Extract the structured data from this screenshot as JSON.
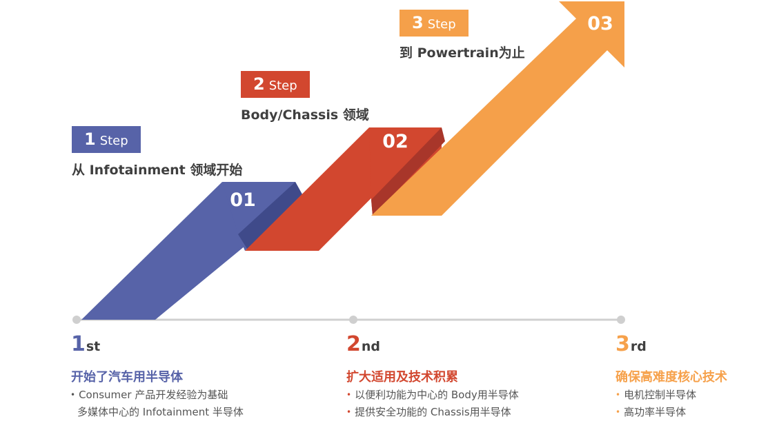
{
  "colors": {
    "step1": "#5763a8",
    "step1_dark": "#3f4a8a",
    "step2": "#d2472f",
    "step2_dark": "#a8362a",
    "step3": "#f5a04a",
    "step3_dark": "#d07a2a",
    "timeline": "#d0d0d0",
    "ordinal3": "#f6a14b"
  },
  "steps": [
    {
      "num": "1",
      "word": "Step",
      "desc": "从 Infotainment 领域开始",
      "badge": "01"
    },
    {
      "num": "2",
      "word": "Step",
      "desc": "Body/Chassis 领域",
      "badge": "02"
    },
    {
      "num": "3",
      "word": "Step",
      "desc": "到 Powertrain为止",
      "badge": "03"
    }
  ],
  "stages": [
    {
      "ord_num": "1",
      "ord_suffix": "st",
      "heading": "开始了汽车用半导体",
      "bullets": [
        "Consumer 产品开发经验为基础"
      ],
      "bullet_cont": "多媒体中心的 Infotainment 半导体"
    },
    {
      "ord_num": "2",
      "ord_suffix": "nd",
      "heading": "扩大适用及技术积累",
      "bullets": [
        "以便利功能为中心的 Body用半导体",
        "提供安全功能的 Chassis用半导体"
      ]
    },
    {
      "ord_num": "3",
      "ord_suffix": "rd",
      "heading": "确保高难度核心技术",
      "bullets": [
        "电机控制半导体",
        "高功率半导体"
      ]
    }
  ]
}
